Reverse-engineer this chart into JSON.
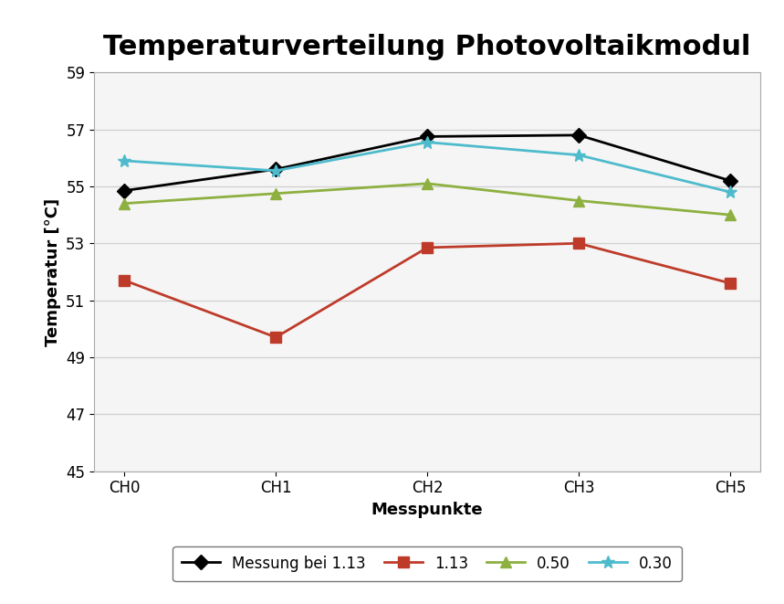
{
  "title": "Temperaturverteilung Photovoltaikmodul",
  "xlabel": "Messpunkte",
  "ylabel": "Temperatur [°C]",
  "categories": [
    "CH0",
    "CH1",
    "CH2",
    "CH3",
    "CH5"
  ],
  "series": [
    {
      "label": "Messung bei 1.13",
      "color": "#000000",
      "marker": "D",
      "marker_color": "#000000",
      "markersize": 8,
      "values": [
        54.85,
        55.6,
        56.75,
        56.8,
        55.2
      ]
    },
    {
      "label": "1.13",
      "color": "#be3b2a",
      "marker": "s",
      "marker_color": "#be3b2a",
      "markersize": 8,
      "values": [
        51.7,
        49.7,
        52.85,
        53.0,
        51.6
      ]
    },
    {
      "label": "0.50",
      "color": "#8db040",
      "marker": "^",
      "marker_color": "#8db040",
      "markersize": 8,
      "values": [
        54.4,
        54.75,
        55.1,
        54.5,
        54.0
      ]
    },
    {
      "label": "0.30",
      "color": "#4dbbcc",
      "marker": "*",
      "marker_color": "#4dbbcc",
      "markersize": 10,
      "values": [
        55.9,
        55.55,
        56.55,
        56.1,
        54.8
      ]
    }
  ],
  "ylim": [
    45,
    59
  ],
  "yticks": [
    45,
    47,
    49,
    51,
    53,
    55,
    57,
    59
  ],
  "background_color": "#ffffff",
  "plot_bg_color": "#f5f5f5",
  "grid_color": "#d0d0d0",
  "title_fontsize": 22,
  "axis_label_fontsize": 13,
  "tick_fontsize": 12,
  "legend_fontsize": 12,
  "linewidth": 2.0
}
